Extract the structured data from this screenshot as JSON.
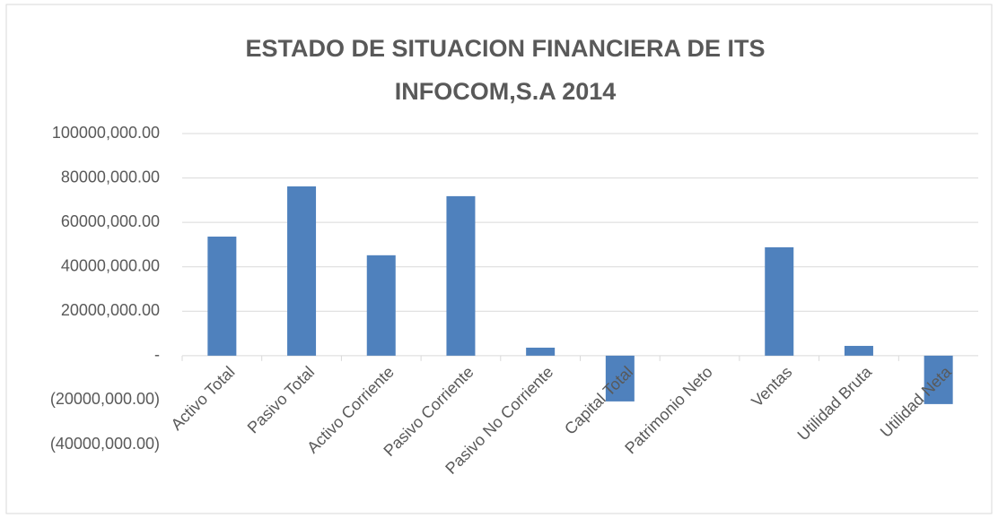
{
  "chart_data": {
    "type": "bar",
    "title": "ESTADO DE SITUACION FINANCIERA DE ITS INFOCOM,S.A 2014",
    "categories": [
      "Activo Total",
      "Pasivo Total",
      "Activo Corriente",
      "Pasivo Corriente",
      "Pasivo No Corriente",
      "Capital Total",
      "Patrimonio Neto",
      "Ventas",
      "Utilidad Bruta",
      "Utilidad Neta"
    ],
    "values": [
      53600000,
      76200000,
      45200000,
      71800000,
      3600000,
      -20600000,
      0,
      48800000,
      4400000,
      -21800000
    ],
    "color": "#4f81bd",
    "ylim": [
      -40000000,
      100000000
    ],
    "yticks": [
      {
        "value": -40000000,
        "label": "(40000,000.00)"
      },
      {
        "value": -20000000,
        "label": "(20000,000.00)"
      },
      {
        "value": 0,
        "label": "-"
      },
      {
        "value": 20000000,
        "label": "20000,000.00"
      },
      {
        "value": 40000000,
        "label": "40000,000.00"
      },
      {
        "value": 60000000,
        "label": "60000,000.00"
      },
      {
        "value": 80000000,
        "label": "80000,000.00"
      },
      {
        "value": 100000000,
        "label": "100000,000.00"
      }
    ],
    "grid": true
  }
}
